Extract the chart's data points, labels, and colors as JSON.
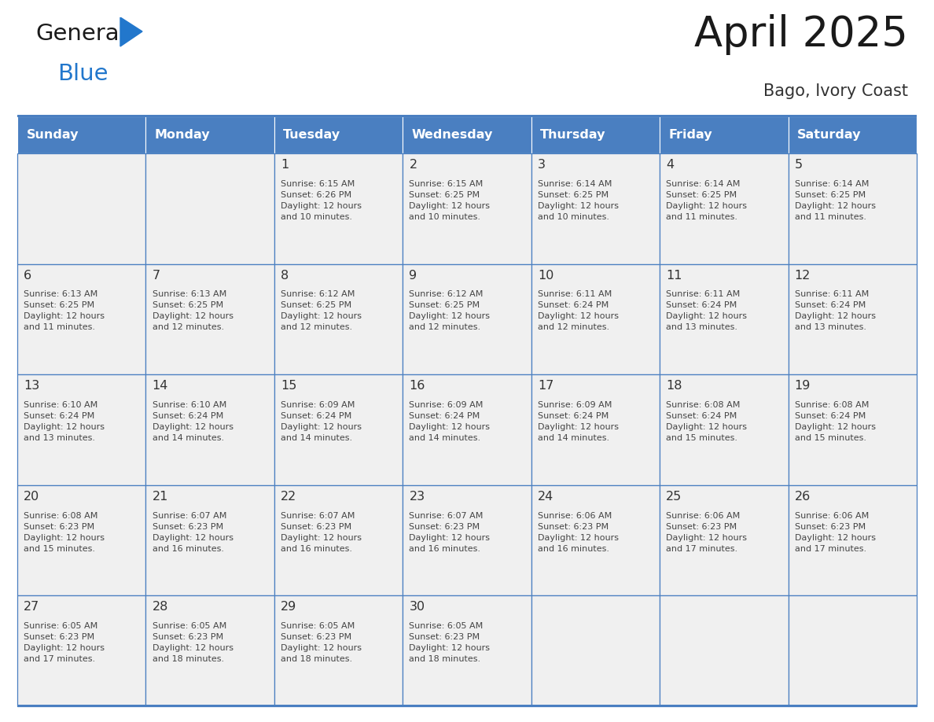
{
  "title": "April 2025",
  "subtitle": "Bago, Ivory Coast",
  "days_of_week": [
    "Sunday",
    "Monday",
    "Tuesday",
    "Wednesday",
    "Thursday",
    "Friday",
    "Saturday"
  ],
  "header_bg": "#4a7fc1",
  "header_text": "#ffffff",
  "cell_bg_light": "#f0f0f0",
  "cell_bg_white": "#ffffff",
  "grid_line_color": "#4a7fc1",
  "day_num_color": "#333333",
  "cell_text_color": "#444444",
  "title_color": "#1a1a1a",
  "subtitle_color": "#333333",
  "calendar": [
    [
      {
        "day": null,
        "info": ""
      },
      {
        "day": null,
        "info": ""
      },
      {
        "day": 1,
        "info": "Sunrise: 6:15 AM\nSunset: 6:26 PM\nDaylight: 12 hours\nand 10 minutes."
      },
      {
        "day": 2,
        "info": "Sunrise: 6:15 AM\nSunset: 6:25 PM\nDaylight: 12 hours\nand 10 minutes."
      },
      {
        "day": 3,
        "info": "Sunrise: 6:14 AM\nSunset: 6:25 PM\nDaylight: 12 hours\nand 10 minutes."
      },
      {
        "day": 4,
        "info": "Sunrise: 6:14 AM\nSunset: 6:25 PM\nDaylight: 12 hours\nand 11 minutes."
      },
      {
        "day": 5,
        "info": "Sunrise: 6:14 AM\nSunset: 6:25 PM\nDaylight: 12 hours\nand 11 minutes."
      }
    ],
    [
      {
        "day": 6,
        "info": "Sunrise: 6:13 AM\nSunset: 6:25 PM\nDaylight: 12 hours\nand 11 minutes."
      },
      {
        "day": 7,
        "info": "Sunrise: 6:13 AM\nSunset: 6:25 PM\nDaylight: 12 hours\nand 12 minutes."
      },
      {
        "day": 8,
        "info": "Sunrise: 6:12 AM\nSunset: 6:25 PM\nDaylight: 12 hours\nand 12 minutes."
      },
      {
        "day": 9,
        "info": "Sunrise: 6:12 AM\nSunset: 6:25 PM\nDaylight: 12 hours\nand 12 minutes."
      },
      {
        "day": 10,
        "info": "Sunrise: 6:11 AM\nSunset: 6:24 PM\nDaylight: 12 hours\nand 12 minutes."
      },
      {
        "day": 11,
        "info": "Sunrise: 6:11 AM\nSunset: 6:24 PM\nDaylight: 12 hours\nand 13 minutes."
      },
      {
        "day": 12,
        "info": "Sunrise: 6:11 AM\nSunset: 6:24 PM\nDaylight: 12 hours\nand 13 minutes."
      }
    ],
    [
      {
        "day": 13,
        "info": "Sunrise: 6:10 AM\nSunset: 6:24 PM\nDaylight: 12 hours\nand 13 minutes."
      },
      {
        "day": 14,
        "info": "Sunrise: 6:10 AM\nSunset: 6:24 PM\nDaylight: 12 hours\nand 14 minutes."
      },
      {
        "day": 15,
        "info": "Sunrise: 6:09 AM\nSunset: 6:24 PM\nDaylight: 12 hours\nand 14 minutes."
      },
      {
        "day": 16,
        "info": "Sunrise: 6:09 AM\nSunset: 6:24 PM\nDaylight: 12 hours\nand 14 minutes."
      },
      {
        "day": 17,
        "info": "Sunrise: 6:09 AM\nSunset: 6:24 PM\nDaylight: 12 hours\nand 14 minutes."
      },
      {
        "day": 18,
        "info": "Sunrise: 6:08 AM\nSunset: 6:24 PM\nDaylight: 12 hours\nand 15 minutes."
      },
      {
        "day": 19,
        "info": "Sunrise: 6:08 AM\nSunset: 6:24 PM\nDaylight: 12 hours\nand 15 minutes."
      }
    ],
    [
      {
        "day": 20,
        "info": "Sunrise: 6:08 AM\nSunset: 6:23 PM\nDaylight: 12 hours\nand 15 minutes."
      },
      {
        "day": 21,
        "info": "Sunrise: 6:07 AM\nSunset: 6:23 PM\nDaylight: 12 hours\nand 16 minutes."
      },
      {
        "day": 22,
        "info": "Sunrise: 6:07 AM\nSunset: 6:23 PM\nDaylight: 12 hours\nand 16 minutes."
      },
      {
        "day": 23,
        "info": "Sunrise: 6:07 AM\nSunset: 6:23 PM\nDaylight: 12 hours\nand 16 minutes."
      },
      {
        "day": 24,
        "info": "Sunrise: 6:06 AM\nSunset: 6:23 PM\nDaylight: 12 hours\nand 16 minutes."
      },
      {
        "day": 25,
        "info": "Sunrise: 6:06 AM\nSunset: 6:23 PM\nDaylight: 12 hours\nand 17 minutes."
      },
      {
        "day": 26,
        "info": "Sunrise: 6:06 AM\nSunset: 6:23 PM\nDaylight: 12 hours\nand 17 minutes."
      }
    ],
    [
      {
        "day": 27,
        "info": "Sunrise: 6:05 AM\nSunset: 6:23 PM\nDaylight: 12 hours\nand 17 minutes."
      },
      {
        "day": 28,
        "info": "Sunrise: 6:05 AM\nSunset: 6:23 PM\nDaylight: 12 hours\nand 18 minutes."
      },
      {
        "day": 29,
        "info": "Sunrise: 6:05 AM\nSunset: 6:23 PM\nDaylight: 12 hours\nand 18 minutes."
      },
      {
        "day": 30,
        "info": "Sunrise: 6:05 AM\nSunset: 6:23 PM\nDaylight: 12 hours\nand 18 minutes."
      },
      {
        "day": null,
        "info": ""
      },
      {
        "day": null,
        "info": ""
      },
      {
        "day": null,
        "info": ""
      }
    ]
  ],
  "logo_general_color": "#1a1a1a",
  "logo_blue_color": "#2277cc",
  "logo_triangle_color": "#2277cc"
}
